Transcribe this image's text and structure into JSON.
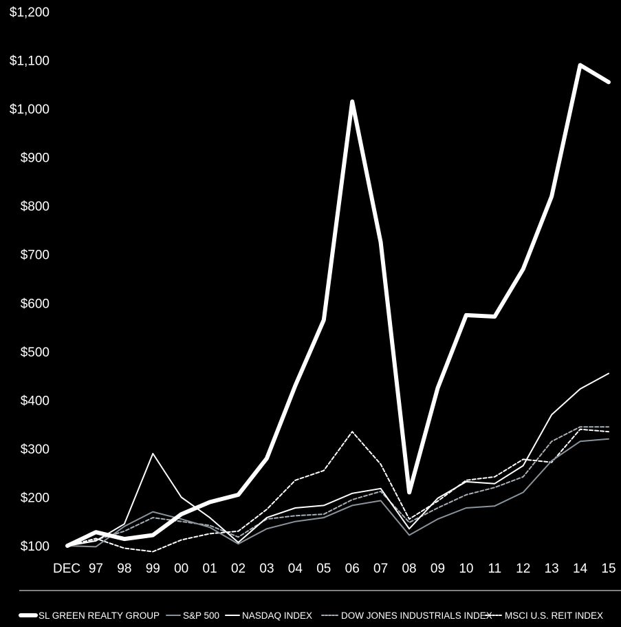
{
  "chart_data": {
    "type": "line",
    "x": [
      "DEC",
      "97",
      "98",
      "99",
      "00",
      "01",
      "02",
      "03",
      "04",
      "05",
      "06",
      "07",
      "08",
      "09",
      "10",
      "11",
      "12",
      "13",
      "14",
      "15"
    ],
    "ylim": [
      100,
      1200
    ],
    "yticks": [
      100,
      200,
      300,
      400,
      500,
      600,
      700,
      800,
      900,
      1000,
      1100,
      1200
    ],
    "ytick_labels": [
      "$100",
      "$200",
      "$300",
      "$400",
      "$500",
      "$600",
      "$700",
      "$800",
      "$900",
      "$1,000",
      "$1,100",
      "$1,200"
    ],
    "grid": false,
    "legend_position": "bottom",
    "series": [
      {
        "name": "SL GREEN REALTY GROUP",
        "style": "bold",
        "color": "#ffffff",
        "values": [
          100,
          128,
          114,
          122,
          165,
          190,
          205,
          280,
          430,
          565,
          1015,
          725,
          210,
          425,
          575,
          572,
          670,
          820,
          1090,
          1055
        ]
      },
      {
        "name": "S&P 500",
        "style": "solid",
        "color": "#8b939c",
        "values": [
          100,
          98,
          140,
          170,
          155,
          138,
          104,
          135,
          150,
          158,
          183,
          193,
          122,
          155,
          178,
          182,
          210,
          275,
          315,
          320
        ]
      },
      {
        "name": "NASDAQ INDEX",
        "style": "solid",
        "color": "#ffffff",
        "values": [
          100,
          110,
          145,
          290,
          200,
          158,
          107,
          158,
          178,
          183,
          208,
          218,
          135,
          198,
          232,
          228,
          265,
          370,
          423,
          455
        ]
      },
      {
        "name": "DOW JONES INDUSTRIALS INDEX",
        "style": "dashed",
        "color": "#a9b0b8",
        "values": [
          100,
          112,
          130,
          158,
          150,
          142,
          118,
          155,
          162,
          165,
          195,
          212,
          148,
          178,
          205,
          220,
          242,
          315,
          345,
          345
        ]
      },
      {
        "name": "MSCI U.S. REIT INDEX",
        "style": "dashed",
        "color": "#ffffff",
        "values": [
          100,
          115,
          95,
          88,
          112,
          125,
          130,
          175,
          235,
          255,
          335,
          268,
          155,
          192,
          235,
          242,
          278,
          272,
          340,
          335
        ]
      }
    ]
  }
}
